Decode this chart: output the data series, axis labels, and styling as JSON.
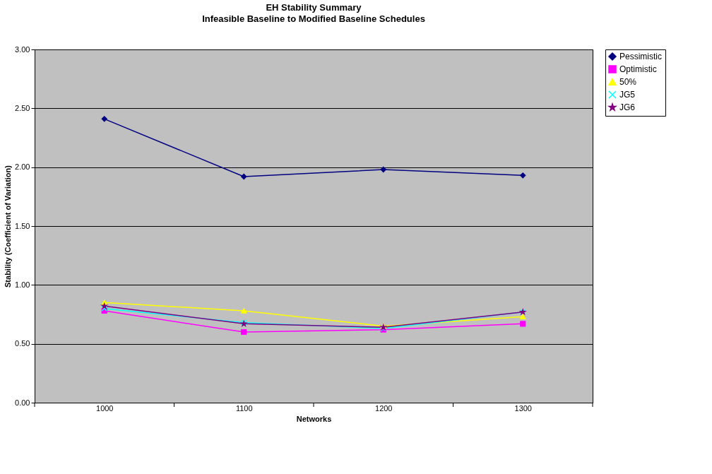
{
  "chart_data": {
    "type": "line",
    "title": "EH Stability Summary",
    "subtitle": "Infeasible Baseline to Modified Baseline Schedules",
    "xlabel": "Networks",
    "ylabel": "Stability (Coefficient of Variation)",
    "categories": [
      "1000",
      "1100",
      "1200",
      "1300"
    ],
    "series": [
      {
        "name": "Pessimistic",
        "color": "#000080",
        "marker": "diamond",
        "values": [
          2.41,
          1.92,
          1.98,
          1.93
        ]
      },
      {
        "name": "Optimistic",
        "color": "#ff00ff",
        "marker": "square",
        "values": [
          0.78,
          0.6,
          0.62,
          0.67
        ]
      },
      {
        "name": "50%",
        "color": "#ffff00",
        "marker": "triangle",
        "values": [
          0.85,
          0.78,
          0.65,
          0.73
        ]
      },
      {
        "name": "JG5",
        "color": "#00ffff",
        "marker": "cross",
        "values": [
          0.8,
          0.68,
          0.63,
          0.77
        ]
      },
      {
        "name": "JG6",
        "color": "#800080",
        "marker": "star",
        "values": [
          0.82,
          0.67,
          0.64,
          0.77
        ]
      }
    ],
    "ylim": [
      0,
      3
    ],
    "yticks": [
      {
        "value": 0,
        "label": "0.00"
      },
      {
        "value": 0.5,
        "label": "0.50"
      },
      {
        "value": 1,
        "label": "1.00"
      },
      {
        "value": 1.5,
        "label": "1.50"
      },
      {
        "value": 2,
        "label": "2.00"
      },
      {
        "value": 2.5,
        "label": "2.50"
      },
      {
        "value": 3,
        "label": "3.00"
      }
    ],
    "grid": "y",
    "legend": "right",
    "line_style": "solid"
  }
}
